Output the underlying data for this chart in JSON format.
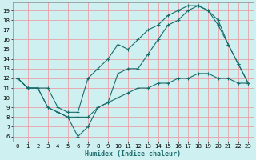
{
  "xlabel": "Humidex (Indice chaleur)",
  "bg_color": "#cff0f0",
  "grid_color": "#e8a0a8",
  "line_color": "#1a6b6b",
  "xlim": [
    -0.5,
    23.5
  ],
  "ylim": [
    5.5,
    19.8
  ],
  "xticks": [
    0,
    1,
    2,
    3,
    4,
    5,
    6,
    7,
    8,
    9,
    10,
    11,
    12,
    13,
    14,
    15,
    16,
    17,
    18,
    19,
    20,
    21,
    22,
    23
  ],
  "yticks": [
    6,
    7,
    8,
    9,
    10,
    11,
    12,
    13,
    14,
    15,
    16,
    17,
    18,
    19
  ],
  "series1_x": [
    0,
    1,
    2,
    3,
    4,
    5,
    6,
    7,
    8,
    9,
    10,
    11,
    12,
    13,
    14,
    15,
    16,
    17,
    18,
    19,
    20,
    21,
    22,
    23
  ],
  "series1_y": [
    12,
    11,
    11,
    11,
    9,
    8.5,
    8.5,
    12,
    13,
    14,
    15.5,
    15,
    16,
    17,
    17.5,
    18.5,
    19,
    19.5,
    19.5,
    19,
    17.5,
    15.5,
    13.5,
    11.5
  ],
  "series2_x": [
    0,
    1,
    2,
    3,
    4,
    5,
    6,
    7,
    8,
    9,
    10,
    11,
    12,
    13,
    14,
    15,
    16,
    17,
    18,
    19,
    20,
    21,
    22,
    23
  ],
  "series2_y": [
    12,
    11,
    11,
    9,
    8.5,
    8,
    6,
    7,
    9,
    9.5,
    12.5,
    13,
    13,
    14.5,
    16,
    17.5,
    18,
    19,
    19.5,
    19,
    18,
    15.5,
    13.5,
    11.5
  ],
  "series3_x": [
    0,
    1,
    2,
    3,
    4,
    5,
    6,
    7,
    8,
    9,
    10,
    11,
    12,
    13,
    14,
    15,
    16,
    17,
    18,
    19,
    20,
    21,
    22,
    23
  ],
  "series3_y": [
    12,
    11,
    11,
    9,
    8.5,
    8,
    8,
    8,
    9,
    9.5,
    10,
    10.5,
    11,
    11,
    11.5,
    11.5,
    12,
    12,
    12.5,
    12.5,
    12,
    12,
    11.5,
    11.5
  ]
}
